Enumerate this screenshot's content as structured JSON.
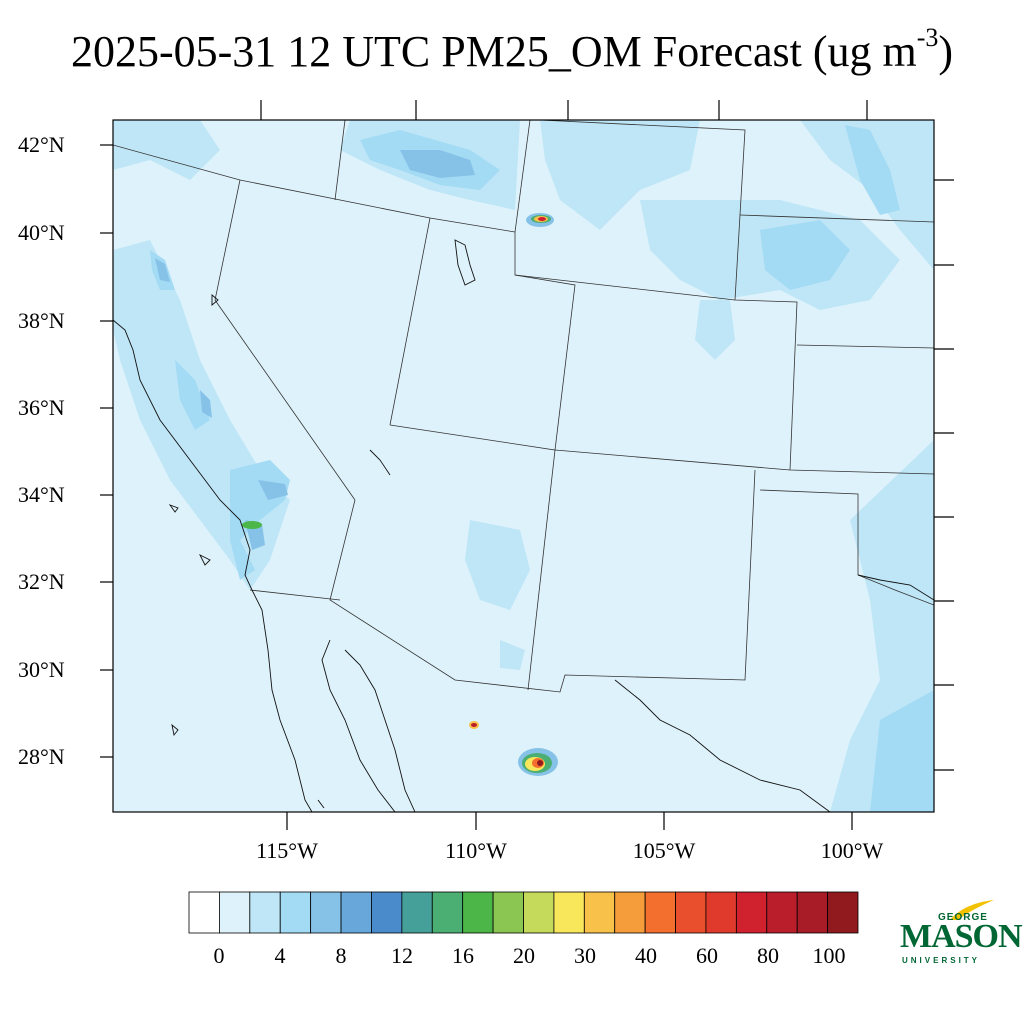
{
  "title": {
    "main": "2025-05-31 12 UTC PM25_OM Forecast (ug m",
    "exponent": "-3",
    "close": ")"
  },
  "map": {
    "lat_labels": [
      "42°N",
      "40°N",
      "38°N",
      "36°N",
      "34°N",
      "32°N",
      "30°N",
      "28°N"
    ],
    "lon_labels": [
      "115°W",
      "110°W",
      "105°W",
      "100°W"
    ]
  },
  "colorbar": {
    "colors": [
      "#ffffff",
      "#def2fb",
      "#bee6f7",
      "#a3daf4",
      "#86c2e7",
      "#67a7da",
      "#4a8ccb",
      "#45a09a",
      "#4bae72",
      "#4cb748",
      "#8ac651",
      "#c5d95b",
      "#f8e65b",
      "#f8c14a",
      "#f59d3a",
      "#f36f2d",
      "#e94f2d",
      "#df3a2c",
      "#d0222e",
      "#bb1e2b",
      "#a81c27",
      "#911a1f"
    ],
    "labels": [
      "0",
      "4",
      "8",
      "12",
      "16",
      "20",
      "30",
      "40",
      "60",
      "80",
      "100"
    ]
  },
  "logo": {
    "line1": "GEORGE",
    "line2": "MASON",
    "line3": "UNIVERSITY",
    "color": "#006633"
  }
}
